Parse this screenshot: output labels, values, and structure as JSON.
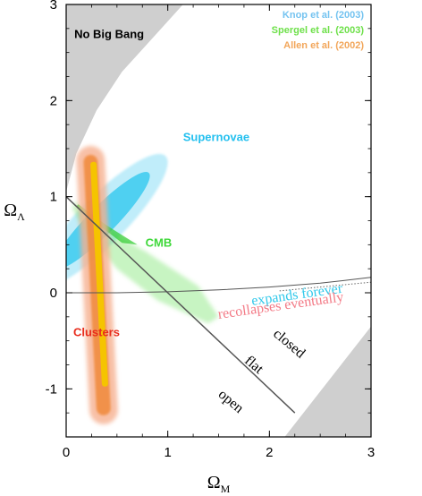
{
  "chart_data": {
    "type": "area",
    "title": "",
    "xlabel": "Ω",
    "xlabel_sub": "M",
    "ylabel": "Ω",
    "ylabel_sub": "Λ",
    "xlim": [
      0,
      3
    ],
    "ylim": [
      -1.5,
      3
    ],
    "xticks": [
      0,
      1,
      2,
      3
    ],
    "yticks": [
      -1,
      0,
      1,
      2,
      3
    ],
    "grid": false,
    "legend_position": "top-right",
    "legend": [
      {
        "label": "Knop et al. (2003)",
        "color": "#74c3f0"
      },
      {
        "label": "Spergel et al.  (2003)",
        "color": "#6ee04a"
      },
      {
        "label": "Allen et al.  (2002)",
        "color": "#f2a65a"
      }
    ],
    "regions": [
      {
        "name": "No Big Bang",
        "color": "#cfcfcf",
        "outline": [
          [
            0,
            3
          ],
          [
            0,
            1.05
          ],
          [
            0.1,
            1.45
          ],
          [
            0.3,
            1.9
          ],
          [
            0.55,
            2.3
          ],
          [
            0.85,
            2.65
          ],
          [
            1.15,
            3.0
          ]
        ]
      },
      {
        "name": "No Big Bang bottom-right corner",
        "color": "#cfcfcf",
        "outline": [
          [
            2.15,
            -1.5
          ],
          [
            3,
            -0.35
          ],
          [
            3,
            -1.5
          ]
        ]
      },
      {
        "name": "Supernovae",
        "color": "#29c5ee",
        "center": [
          0.35,
          0.75
        ],
        "angle_deg": 47,
        "inner_semi": [
          0.68,
          0.14
        ],
        "outer_semi": [
          0.92,
          0.24
        ]
      },
      {
        "name": "CMB",
        "color": "#5fe04d",
        "outline": [
          [
            0.09,
            0.95
          ],
          [
            0.35,
            0.68
          ],
          [
            0.78,
            0.43
          ],
          [
            1.3,
            0.07
          ],
          [
            1.5,
            -0.25
          ],
          [
            1.4,
            -0.32
          ],
          [
            0.9,
            -0.08
          ],
          [
            0.5,
            0.25
          ],
          [
            0.18,
            0.65
          ],
          [
            0.06,
            0.88
          ]
        ]
      },
      {
        "name": "Clusters",
        "color": "#f0883a",
        "center": [
          0.33,
          0.05
        ],
        "width_inner": 0.14,
        "width_outer": 0.28,
        "ymin": -1.35,
        "ymax": 1.55
      }
    ],
    "lines": [
      {
        "name": "flat",
        "points": [
          [
            0,
            1
          ],
          [
            2.25,
            -1.25
          ]
        ],
        "color": "#555555",
        "width": 1.5
      },
      {
        "name": "expands-forever boundary",
        "points": [
          [
            0,
            0
          ],
          [
            0.5,
            0
          ],
          [
            1.0,
            0.01
          ],
          [
            1.5,
            0.03
          ],
          [
            2.0,
            0.06
          ],
          [
            2.5,
            0.1
          ],
          [
            3.0,
            0.16
          ]
        ],
        "color": "#555555",
        "width": 1
      }
    ],
    "annotations": [
      {
        "text": "No Big Bang",
        "x": 0.08,
        "y": 2.65,
        "color": "#000000",
        "rotate": 0,
        "font": "sans",
        "size": 13
      },
      {
        "text": "Supernovae",
        "x": 1.15,
        "y": 1.58,
        "color": "#24c0ef",
        "rotate": 0,
        "font": "sans",
        "size": 13
      },
      {
        "text": "CMB",
        "x": 0.78,
        "y": 0.48,
        "color": "#3fd83a",
        "rotate": 0,
        "font": "sans",
        "size": 13
      },
      {
        "text": "Clusters",
        "x": 0.07,
        "y": -0.45,
        "color": "#e82c1c",
        "rotate": 0,
        "font": "sans",
        "size": 13
      },
      {
        "text": "expands forever",
        "x": 1.83,
        "y": -0.13,
        "color": "#30c8ea",
        "rotate": -8,
        "font": "serif",
        "size": 16
      },
      {
        "text": "recollapses eventually",
        "x": 1.5,
        "y": -0.27,
        "color": "#f37a86",
        "rotate": -8,
        "font": "serif",
        "size": 16
      },
      {
        "text": "closed",
        "x": 2.03,
        "y": -0.44,
        "color": "#000000",
        "rotate": 40,
        "font": "serif",
        "size": 16
      },
      {
        "text": "flat",
        "x": 1.75,
        "y": -0.72,
        "color": "#000000",
        "rotate": 40,
        "font": "serif",
        "size": 16
      },
      {
        "text": "open",
        "x": 1.49,
        "y": -1.07,
        "color": "#000000",
        "rotate": 40,
        "font": "serif",
        "size": 16
      }
    ]
  }
}
